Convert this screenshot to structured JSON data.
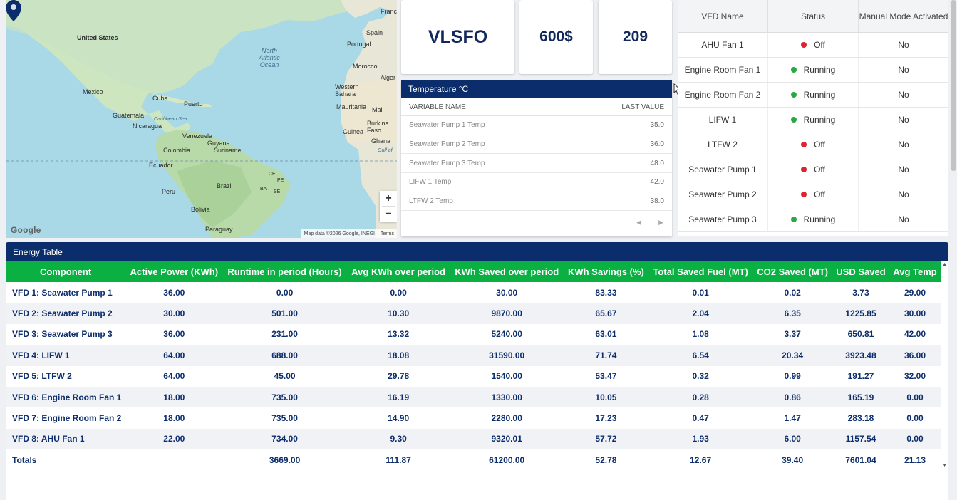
{
  "map": {
    "labels": {
      "united_states": "United States",
      "mexico": "Mexico",
      "cuba": "Cuba",
      "puerto": "Puerto",
      "guatemala": "Guatemala",
      "nicaragua": "Nicaragua",
      "caribbean_sea": "Caribbean Sea",
      "venezuela": "Venezuela",
      "guyana": "Guyana",
      "suriname": "Suriname",
      "colombia": "Colombia",
      "ecuador": "Ecuador",
      "peru": "Peru",
      "brazil": "Brazil",
      "bolivia": "Bolivia",
      "paraguay": "Paraguay",
      "north_atlantic_ocean": "North Atlantic Ocean",
      "spain": "Spain",
      "portugal": "Portugal",
      "morocco": "Morocco",
      "algeria": "Alger",
      "western_sahara": "Western Sahara",
      "mauritania": "Mauritania",
      "mali": "Mali",
      "burkina_faso": "Burkina Faso",
      "guinea": "Guinea",
      "ghana": "Ghana",
      "gulf": "Gulf of",
      "france": "Franc",
      "ce": "CE",
      "ba": "BA",
      "pe": "PE",
      "se": "SE"
    },
    "zoom_in": "+",
    "zoom_out": "−",
    "google": "Google",
    "attribution": "Map data ©2026 Google, INEGI",
    "terms": "Terms"
  },
  "cards": {
    "fuel_type": "VLSFO",
    "price": "600$",
    "count": "209"
  },
  "temperature": {
    "title": "Temperature °C",
    "col_name": "VARIABLE NAME",
    "col_value": "LAST VALUE",
    "rows": [
      {
        "name": "Seawater Pump 1 Temp",
        "value": "35.0"
      },
      {
        "name": "Seawater Pump 2 Temp",
        "value": "36.0"
      },
      {
        "name": "Seawater Pump 3 Temp",
        "value": "48.0"
      },
      {
        "name": "LIFW 1 Temp",
        "value": "42.0"
      },
      {
        "name": "LTFW 2 Temp",
        "value": "38.0"
      }
    ],
    "prev_icon": "◀",
    "next_icon": "▶"
  },
  "vfd": {
    "headers": {
      "name": "VFD Name",
      "status": "Status",
      "manual": "Manual Mode Activated"
    },
    "rows": [
      {
        "name": "AHU Fan 1",
        "status": "Off",
        "manual": "No"
      },
      {
        "name": "Engine Room Fan 1",
        "status": "Running",
        "manual": "No"
      },
      {
        "name": "Engine Room Fan 2",
        "status": "Running",
        "manual": "No"
      },
      {
        "name": "LIFW 1",
        "status": "Running",
        "manual": "No"
      },
      {
        "name": "LTFW 2",
        "status": "Off",
        "manual": "No"
      },
      {
        "name": "Seawater Pump 1",
        "status": "Off",
        "manual": "No"
      },
      {
        "name": "Seawater Pump 2",
        "status": "Off",
        "manual": "No"
      },
      {
        "name": "Seawater Pump 3",
        "status": "Running",
        "manual": "No"
      }
    ],
    "status_colors": {
      "Off": "#dc2432",
      "Running": "#2aa845"
    }
  },
  "energy": {
    "title": "Energy Table",
    "headers": [
      "Component",
      "Active Power (KWh)",
      "Runtime in period (Hours)",
      "Avg KWh over period",
      "KWh Saved over period",
      "KWh Savings (%)",
      "Total Saved Fuel (MT)",
      "CO2 Saved (MT)",
      "USD Saved",
      "Avg Temp"
    ],
    "rows": [
      [
        "VFD 1: Seawater Pump 1",
        "36.00",
        "0.00",
        "0.00",
        "30.00",
        "83.33",
        "0.01",
        "0.02",
        "3.73",
        "29.00"
      ],
      [
        "VFD 2: Seawater Pump 2",
        "30.00",
        "501.00",
        "10.30",
        "9870.00",
        "65.67",
        "2.04",
        "6.35",
        "1225.85",
        "30.00"
      ],
      [
        "VFD 3: Seawater Pump 3",
        "36.00",
        "231.00",
        "13.32",
        "5240.00",
        "63.01",
        "1.08",
        "3.37",
        "650.81",
        "42.00"
      ],
      [
        "VFD 4: LIFW 1",
        "64.00",
        "688.00",
        "18.08",
        "31590.00",
        "71.74",
        "6.54",
        "20.34",
        "3923.48",
        "36.00"
      ],
      [
        "VFD 5: LTFW 2",
        "64.00",
        "45.00",
        "29.78",
        "1540.00",
        "53.47",
        "0.32",
        "0.99",
        "191.27",
        "32.00"
      ],
      [
        "VFD 6: Engine Room Fan 1",
        "18.00",
        "735.00",
        "16.19",
        "1330.00",
        "10.05",
        "0.28",
        "0.86",
        "165.19",
        "0.00"
      ],
      [
        "VFD 7: Engine Room Fan 2",
        "18.00",
        "735.00",
        "14.90",
        "2280.00",
        "17.23",
        "0.47",
        "1.47",
        "283.18",
        "0.00"
      ],
      [
        "VFD 8: AHU Fan 1",
        "22.00",
        "734.00",
        "9.30",
        "9320.01",
        "57.72",
        "1.93",
        "6.00",
        "1157.54",
        "0.00"
      ],
      [
        "Totals",
        "",
        "3669.00",
        "111.87",
        "61200.00",
        "52.78",
        "12.67",
        "39.40",
        "7601.04",
        "21.13"
      ]
    ],
    "header_color": "#0ab042",
    "title_color": "#0c2d6b"
  }
}
